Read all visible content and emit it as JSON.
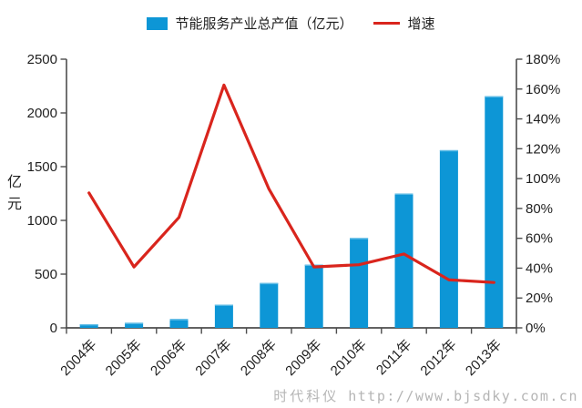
{
  "legend": {
    "bar_label": "节能服务产业总产值（亿元）",
    "line_label": "增速"
  },
  "y_axis_title": "亿元",
  "watermark": {
    "brand": "时代科仪",
    "url": "http://www.bjsdky.com.cn"
  },
  "colors": {
    "bar": "#0d96d6",
    "bar_edge": "#5fbbe5",
    "line": "#d9251d",
    "axis": "#4d4d4d",
    "text": "#1f1f1f",
    "watermark": "#b5b5b5"
  },
  "chart_data": {
    "type": "bar",
    "subtype": "bar+line combo, dual axis",
    "categories": [
      "2004年",
      "2005年",
      "2006年",
      "2007年",
      "2008年",
      "2009年",
      "2010年",
      "2011年",
      "2012年",
      "2013年"
    ],
    "series": [
      {
        "name": "节能服务产业总产值（亿元）",
        "type": "bar",
        "axis": "left",
        "values": [
          33.6,
          47.3,
          82.3,
          216.2,
          417.3,
          587.7,
          836.3,
          1250.3,
          1653.4,
          2155.6
        ]
      },
      {
        "name": "增速",
        "type": "line",
        "axis": "right",
        "unit": "%",
        "values": [
          90.4,
          40.8,
          74.0,
          162.7,
          93.0,
          40.8,
          42.3,
          49.5,
          32.2,
          30.4
        ]
      }
    ],
    "left_axis": {
      "title": "亿元",
      "min": 0,
      "max": 2500,
      "tick_step": 500,
      "ticks": [
        "0",
        "500",
        "1000",
        "1500",
        "2000",
        "2500"
      ]
    },
    "right_axis": {
      "min": 0,
      "max": 180,
      "tick_step": 20,
      "ticks": [
        "0%",
        "20%",
        "40%",
        "60%",
        "80%",
        "100%",
        "120%",
        "140%",
        "160%",
        "180%"
      ]
    },
    "grid": false,
    "legend_position": "top-center",
    "x_label_rotation": -45
  }
}
